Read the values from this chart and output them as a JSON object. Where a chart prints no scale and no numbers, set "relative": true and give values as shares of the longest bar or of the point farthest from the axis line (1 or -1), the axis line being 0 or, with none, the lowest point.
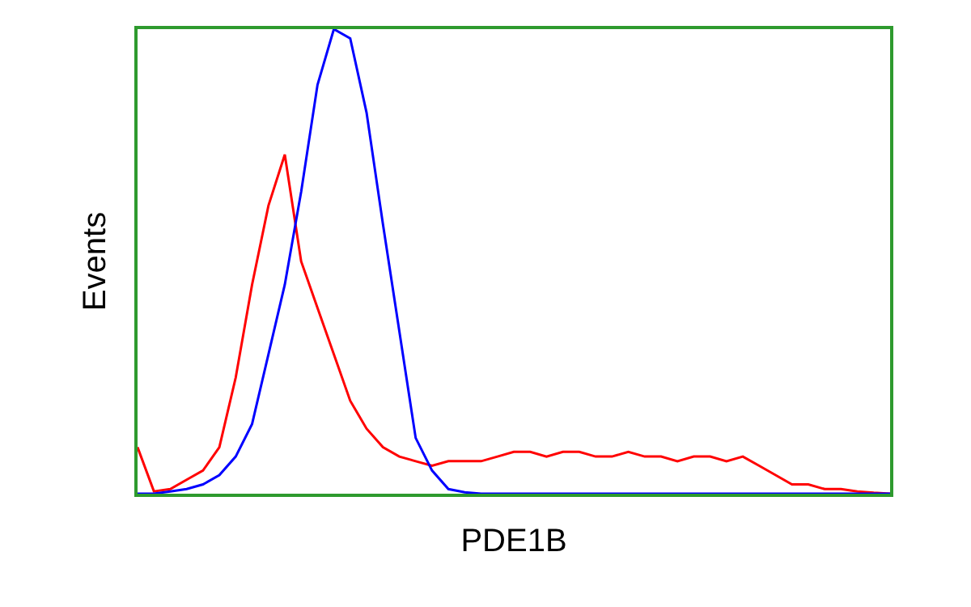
{
  "chart_data": {
    "type": "line",
    "relative": true,
    "xlabel": "PDE1B",
    "ylabel": "Events",
    "grid": false,
    "legend": false,
    "categories": [
      null,
      null,
      null,
      null,
      null,
      null,
      null,
      null,
      null,
      null,
      null,
      null,
      null,
      null,
      null,
      null,
      null,
      null,
      null,
      null,
      null,
      null,
      null,
      null,
      null,
      null,
      null,
      null,
      null,
      null,
      null,
      null,
      null,
      null,
      null,
      null,
      null,
      null,
      null,
      null,
      null,
      null,
      null,
      null,
      null,
      null,
      null
    ],
    "series": [
      {
        "color": "#ff0000",
        "values": [
          0.1,
          0.005,
          0.01,
          0.03,
          0.05,
          0.1,
          0.25,
          0.45,
          0.62,
          0.73,
          0.5,
          0.4,
          0.3,
          0.2,
          0.14,
          0.1,
          0.08,
          0.07,
          0.06,
          0.07,
          0.07,
          0.07,
          0.08,
          0.09,
          0.09,
          0.08,
          0.09,
          0.09,
          0.08,
          0.08,
          0.09,
          0.08,
          0.08,
          0.07,
          0.08,
          0.08,
          0.07,
          0.08,
          0.06,
          0.04,
          0.02,
          0.02,
          0.01,
          0.01,
          0.005,
          0.002,
          0
        ]
      },
      {
        "color": "#0000ff",
        "values": [
          0,
          0,
          0.005,
          0.01,
          0.02,
          0.04,
          0.08,
          0.15,
          0.3,
          0.45,
          0.65,
          0.88,
          1,
          0.98,
          0.82,
          0.58,
          0.35,
          0.12,
          0.05,
          0.01,
          0.003,
          0,
          0,
          0,
          0,
          0,
          0,
          0,
          0,
          0,
          0,
          0,
          0,
          0,
          0,
          0,
          0,
          0,
          0,
          0,
          0,
          0,
          0,
          0,
          0,
          0,
          0
        ]
      }
    ]
  }
}
